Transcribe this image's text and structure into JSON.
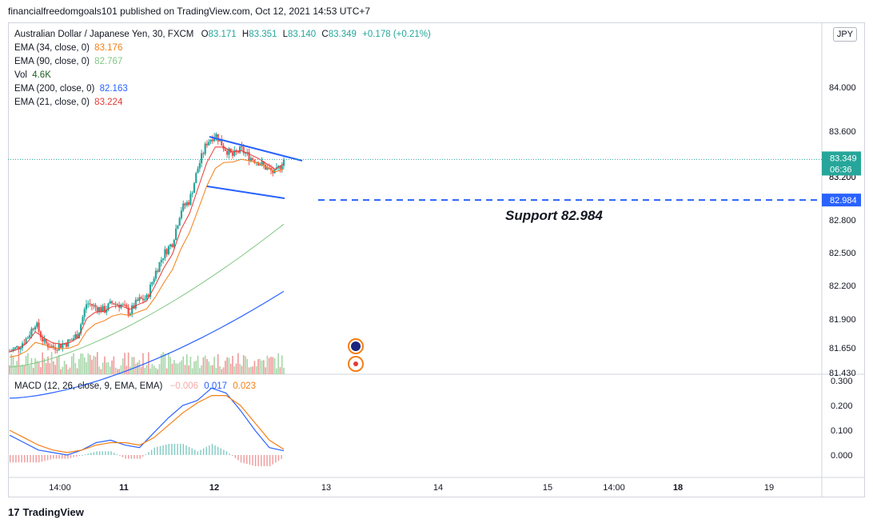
{
  "header": {
    "published": "financialfreedomgoals101 published on TradingView.com, Oct 12, 2021 14:53 UTC+7"
  },
  "footer": {
    "logo": "17",
    "brand": "TradingView"
  },
  "currency_label": "JPY",
  "legend": {
    "symbol": "Australian Dollar / Japanese Yen, 30, FXCM",
    "ohlc": [
      {
        "k": "O",
        "v": "83.171"
      },
      {
        "k": "H",
        "v": "83.351"
      },
      {
        "k": "L",
        "v": "83.140"
      },
      {
        "k": "C",
        "v": "83.349"
      }
    ],
    "change": "+0.178 (+0.21%)",
    "indicators": [
      {
        "label": "EMA (34, close, 0)",
        "value": "83.176",
        "color": "#f57f17"
      },
      {
        "label": "EMA (90, close, 0)",
        "value": "82.767",
        "color": "#81c784"
      },
      {
        "label": "Vol",
        "value": "4.6K",
        "color": "#1b5e20"
      },
      {
        "label": "EMA (200, close, 0)",
        "value": "82.163",
        "color": "#2962ff"
      },
      {
        "label": "EMA (21, close, 0)",
        "value": "83.224",
        "color": "#e53935"
      }
    ]
  },
  "macd_legend": {
    "label": "MACD (12, 26, close, 9, EMA, EMA)",
    "hist": "−0.006",
    "macd": "0.017",
    "signal": "0.023"
  },
  "colors": {
    "up": "#26a69a",
    "down": "#ef5350",
    "ema21": "#e53935",
    "ema34": "#f57f17",
    "ema90": "#81c784",
    "ema200": "#2962ff",
    "support": "#2962ff",
    "macd": "#2962ff",
    "signal": "#f57f17"
  },
  "chart_data": [
    {
      "type": "candlestick",
      "title": "Australian Dollar / Japanese Yen, 30, FXCM",
      "price_axis": [
        "84.000",
        "83.600",
        "83.200",
        "82.800",
        "82.500",
        "82.200",
        "81.900",
        "81.650",
        "81.430"
      ],
      "time_axis": [
        "14:00",
        "11",
        "12",
        "13",
        "14",
        "15",
        "14:00",
        "18",
        "19"
      ],
      "ylim": [
        81.43,
        84.2
      ],
      "grid": false,
      "last_price": {
        "value": "83.349",
        "countdown": "06:36",
        "color": "#26a69a"
      },
      "support": {
        "value": "82.984",
        "label": "Support 82.984"
      },
      "close_series": [
        81.62,
        81.66,
        81.74,
        81.88,
        81.7,
        81.66,
        81.68,
        81.71,
        81.78,
        82.06,
        82.02,
        81.99,
        82.06,
        82.04,
        81.97,
        82.08,
        82.1,
        82.33,
        82.5,
        82.6,
        82.9,
        82.98,
        83.28,
        83.5,
        83.58,
        83.46,
        83.38,
        83.44,
        83.37,
        83.33,
        83.27,
        83.22,
        83.35
      ],
      "series": [
        {
          "name": "EMA (21, close, 0)",
          "value": 83.224
        },
        {
          "name": "EMA (34, close, 0)",
          "value": 83.176
        },
        {
          "name": "EMA (90, close, 0)",
          "value": 82.767
        },
        {
          "name": "EMA (200, close, 0)",
          "value": 82.163
        }
      ],
      "pattern": "falling wedge / flag drawn on latest price action"
    },
    {
      "type": "line",
      "title": "MACD (12, 26, close, 9, EMA, EMA)",
      "y_axis": [
        "0.300",
        "0.200",
        "0.100",
        "0.000"
      ],
      "ylim": [
        -0.05,
        0.3
      ],
      "macd": [
        0.08,
        0.05,
        0.02,
        0.01,
        0.0,
        0.02,
        0.05,
        0.06,
        0.04,
        0.03,
        0.09,
        0.15,
        0.2,
        0.22,
        0.27,
        0.25,
        0.18,
        0.1,
        0.03,
        0.017
      ],
      "signal": [
        0.1,
        0.07,
        0.04,
        0.02,
        0.01,
        0.02,
        0.04,
        0.05,
        0.05,
        0.04,
        0.07,
        0.12,
        0.17,
        0.21,
        0.24,
        0.24,
        0.2,
        0.13,
        0.06,
        0.023
      ]
    }
  ]
}
